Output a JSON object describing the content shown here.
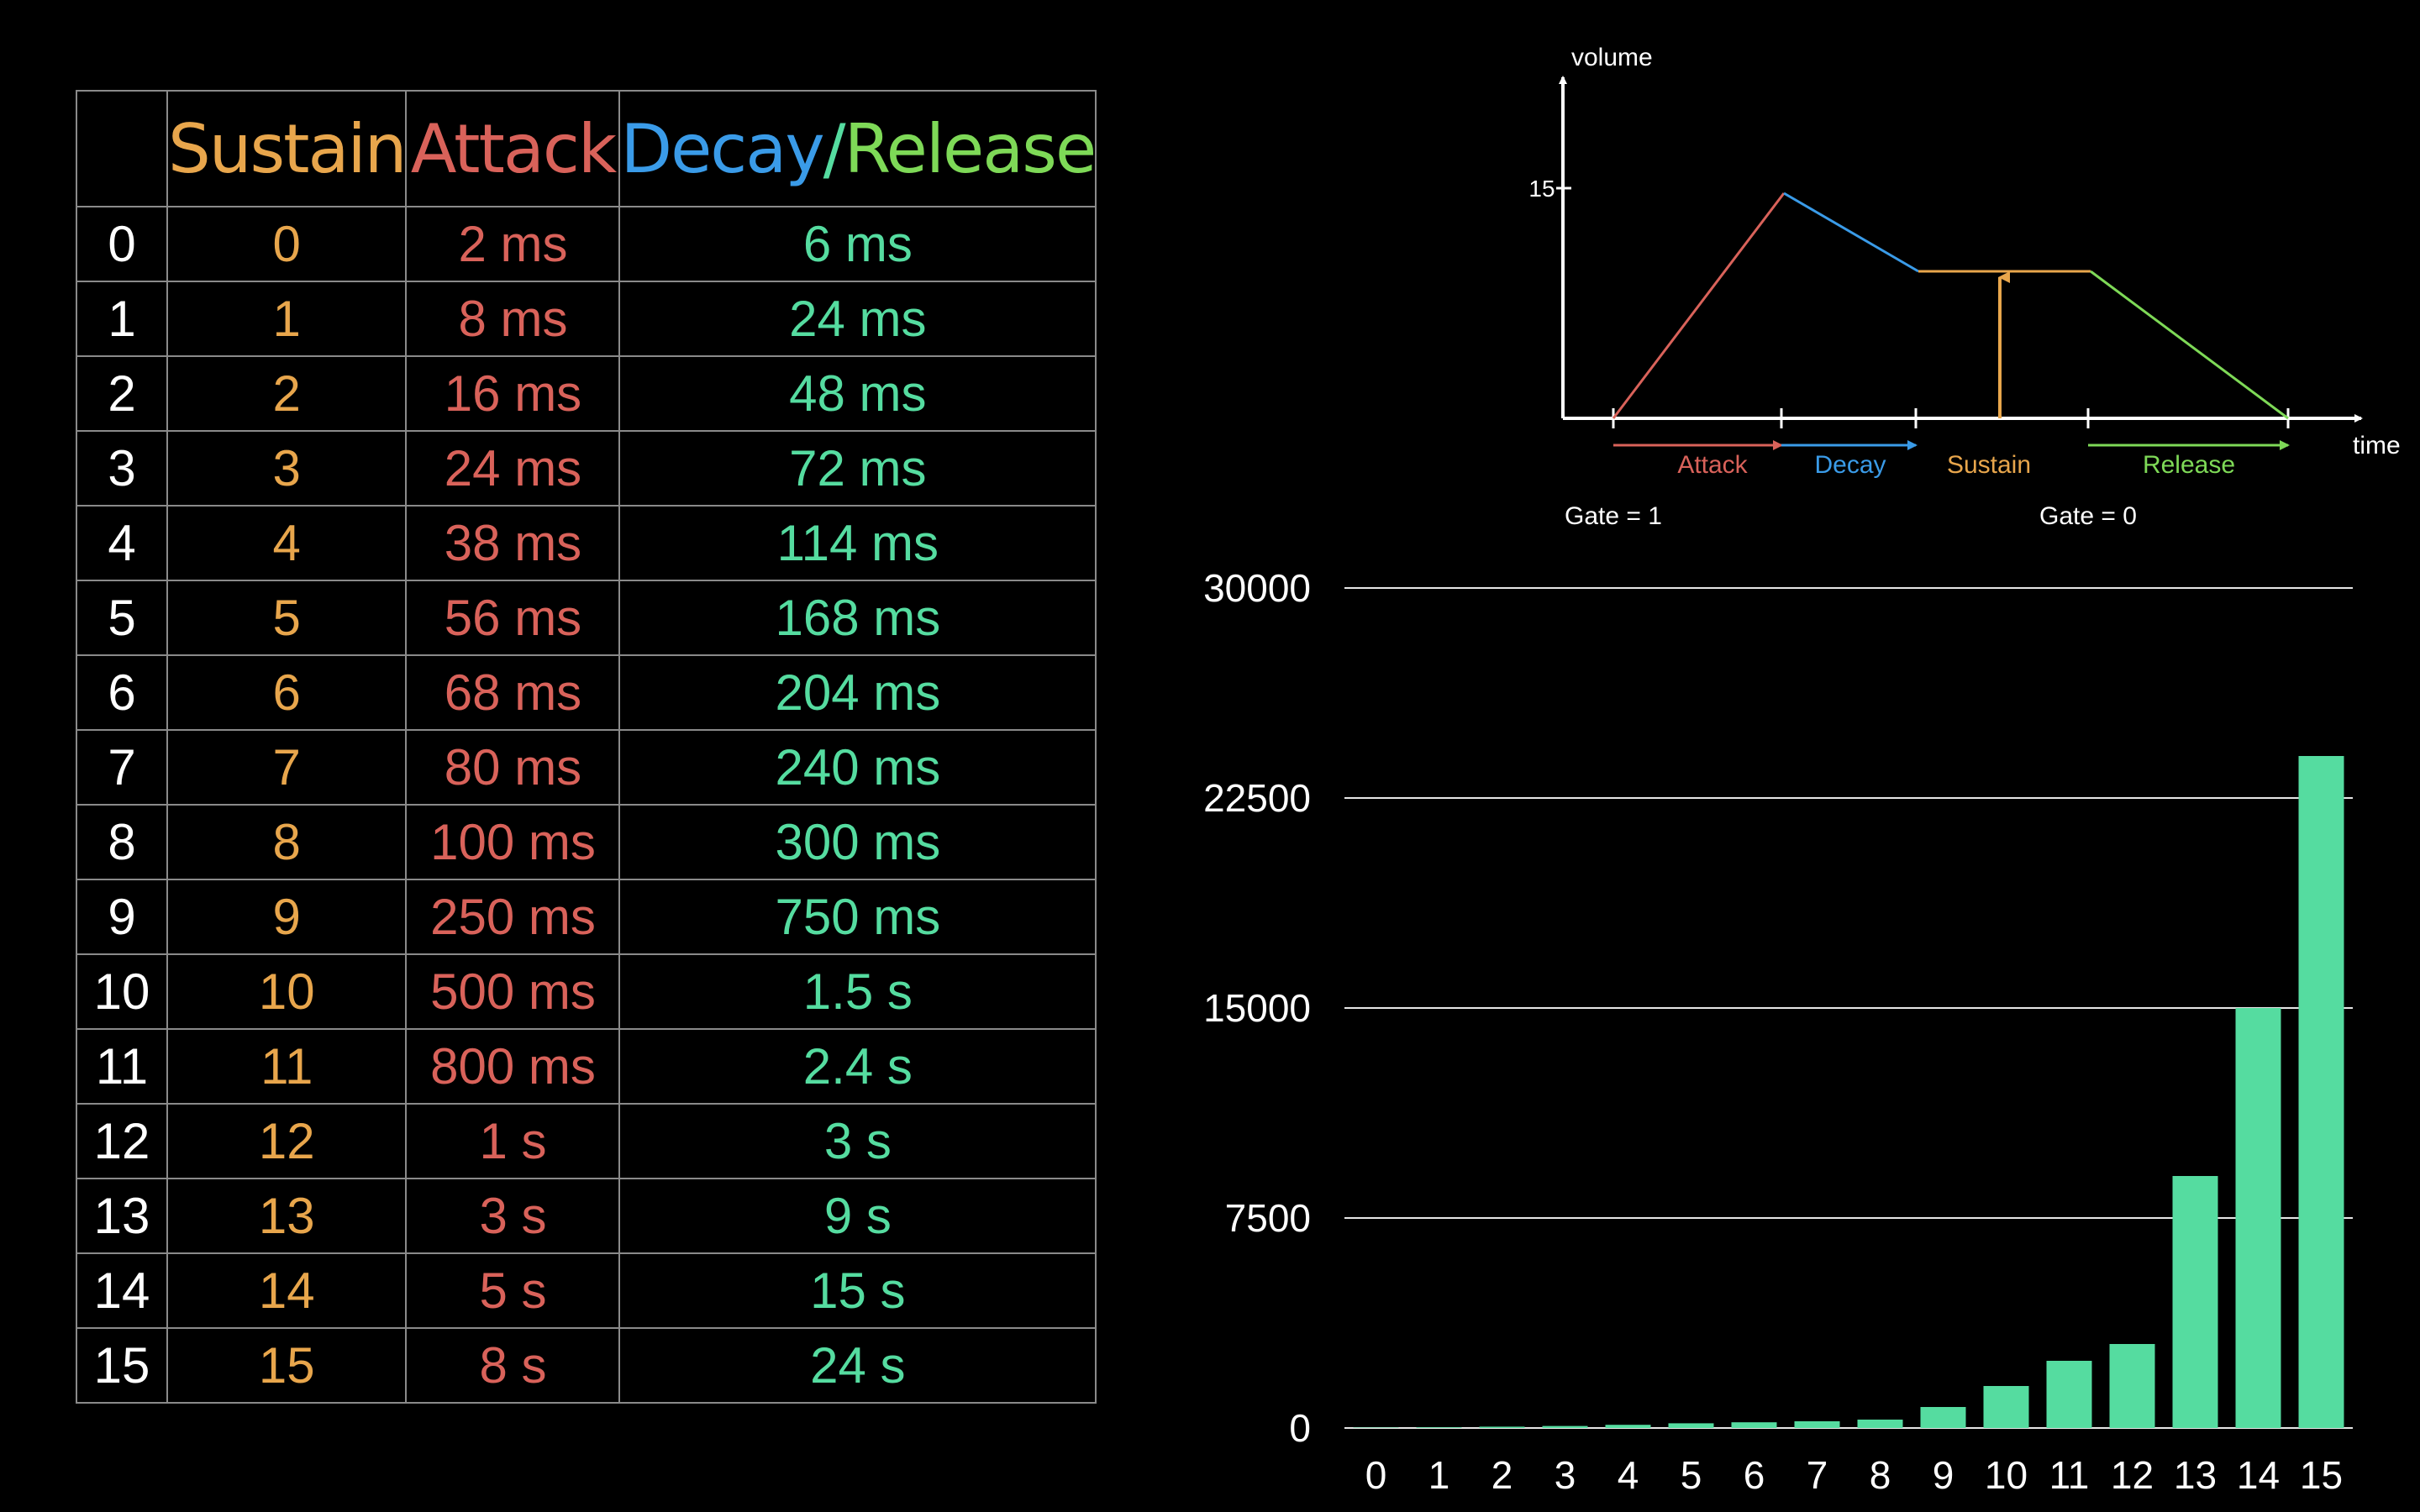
{
  "colors": {
    "sustain": "#e8a64c",
    "attack": "#d9625a",
    "decay": "#3a9be8",
    "release": "#7ed957",
    "value": "#55dca0",
    "index": "#ffffff",
    "grid": "#e6e6e6"
  },
  "table": {
    "headers": {
      "index": "",
      "sustain": "Sustain",
      "attack": "Attack",
      "decay": "Decay",
      "slash": "/",
      "release": "Release"
    },
    "rows": [
      {
        "index": "0",
        "sustain": "0",
        "attack": "2 ms",
        "decay_release": "6 ms"
      },
      {
        "index": "1",
        "sustain": "1",
        "attack": "8 ms",
        "decay_release": "24 ms"
      },
      {
        "index": "2",
        "sustain": "2",
        "attack": "16 ms",
        "decay_release": "48 ms"
      },
      {
        "index": "3",
        "sustain": "3",
        "attack": "24 ms",
        "decay_release": "72 ms"
      },
      {
        "index": "4",
        "sustain": "4",
        "attack": "38 ms",
        "decay_release": "114 ms"
      },
      {
        "index": "5",
        "sustain": "5",
        "attack": "56 ms",
        "decay_release": "168 ms"
      },
      {
        "index": "6",
        "sustain": "6",
        "attack": "68 ms",
        "decay_release": "204 ms"
      },
      {
        "index": "7",
        "sustain": "7",
        "attack": "80 ms",
        "decay_release": "240 ms"
      },
      {
        "index": "8",
        "sustain": "8",
        "attack": "100 ms",
        "decay_release": "300 ms"
      },
      {
        "index": "9",
        "sustain": "9",
        "attack": "250 ms",
        "decay_release": "750 ms"
      },
      {
        "index": "10",
        "sustain": "10",
        "attack": "500 ms",
        "decay_release": "1.5 s"
      },
      {
        "index": "11",
        "sustain": "11",
        "attack": "800 ms",
        "decay_release": "2.4 s"
      },
      {
        "index": "12",
        "sustain": "12",
        "attack": "1 s",
        "decay_release": "3 s"
      },
      {
        "index": "13",
        "sustain": "13",
        "attack": "3 s",
        "decay_release": "9 s"
      },
      {
        "index": "14",
        "sustain": "14",
        "attack": "5 s",
        "decay_release": "15 s"
      },
      {
        "index": "15",
        "sustain": "15",
        "attack": "8 s",
        "decay_release": "24 s"
      }
    ]
  },
  "envelope": {
    "y_axis_label": "volume",
    "x_axis_label": "time",
    "y_tick": "15",
    "phases": {
      "attack": "Attack",
      "decay": "Decay",
      "sustain": "Sustain",
      "release": "Release"
    },
    "gate_on": "Gate = 1",
    "gate_off": "Gate = 0"
  },
  "chart_data": {
    "type": "bar",
    "categories": [
      "0",
      "1",
      "2",
      "3",
      "4",
      "5",
      "6",
      "7",
      "8",
      "9",
      "10",
      "11",
      "12",
      "13",
      "14",
      "15"
    ],
    "values": [
      6,
      24,
      48,
      72,
      114,
      168,
      204,
      240,
      300,
      750,
      1500,
      2400,
      3000,
      9000,
      15000,
      24000
    ],
    "yticks": [
      "0",
      "7500",
      "15000",
      "22500",
      "30000"
    ],
    "ylim": [
      0,
      30000
    ],
    "grid": true,
    "color": "#55dca0"
  }
}
